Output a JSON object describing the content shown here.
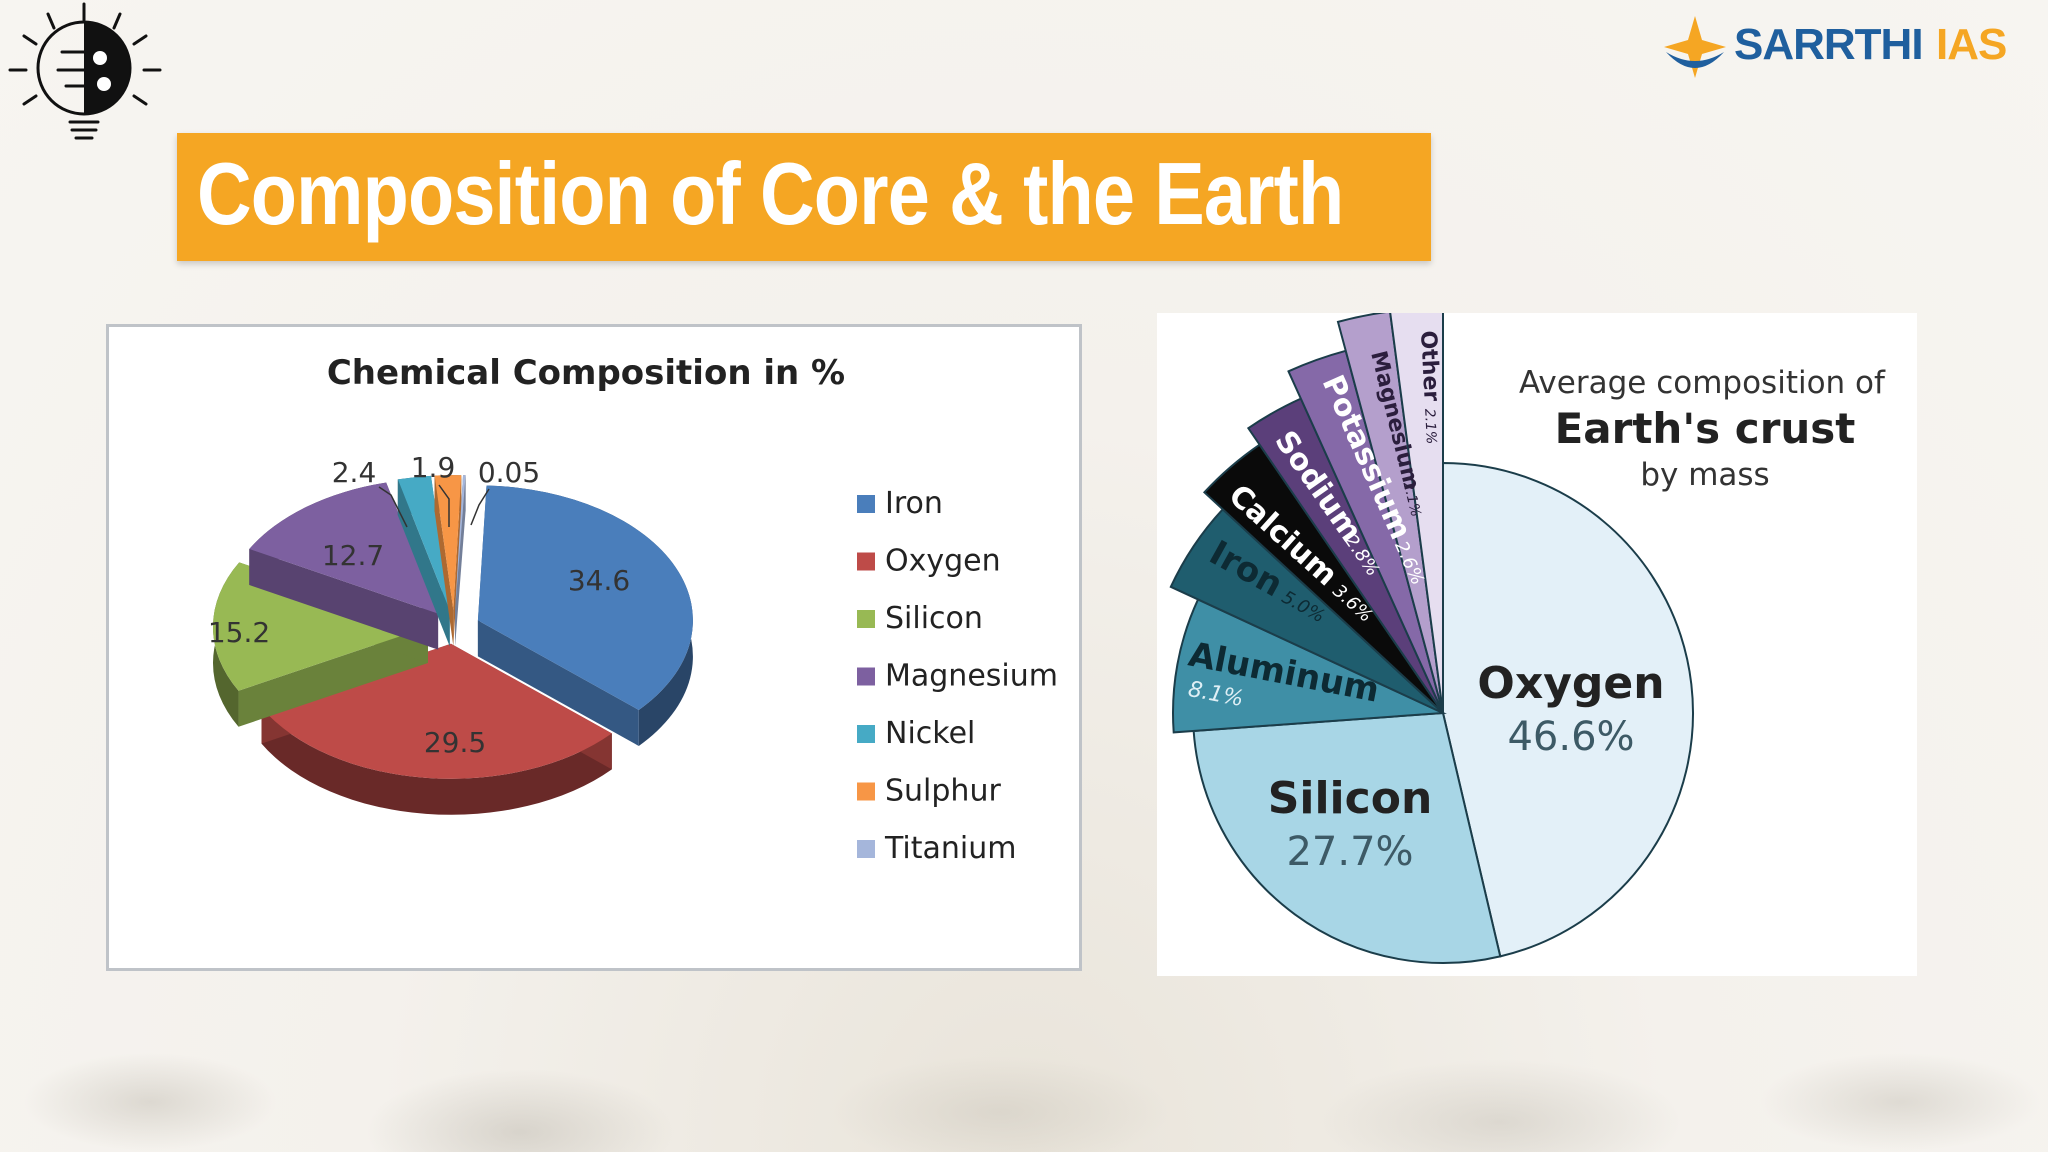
{
  "brand": {
    "name_part1": "SARRTHI",
    "name_part2": "IAS",
    "colors": {
      "blue": "#1f5f9e",
      "orange": "#f5a623"
    }
  },
  "header": {
    "title": "Composition of Core & the Earth",
    "banner_color": "#f5a623"
  },
  "icons": [
    "lightbulb-icon",
    "brand-logo-icon"
  ],
  "chart_data": [
    {
      "type": "pie",
      "title": "Chemical Composition in %",
      "legend_position": "right",
      "categories": [
        "Iron",
        "Oxygen",
        "Silicon",
        "Magnesium",
        "Nickel",
        "Sulphur",
        "Titanium"
      ],
      "values": [
        34.6,
        29.5,
        15.2,
        12.7,
        2.4,
        1.9,
        0.05
      ],
      "data_labels": [
        "34.6",
        "29.5",
        "15.2",
        "12.7",
        "2.4",
        "1.9",
        "0.05"
      ],
      "colors": [
        "#4a7ebb",
        "#be4b48",
        "#98b954",
        "#7d60a0",
        "#46aac5",
        "#f79646",
        "#a5b6db"
      ]
    },
    {
      "type": "pie",
      "title": "Average composition of",
      "title_emphasis": "Earth's crust",
      "subtitle": "by mass",
      "categories": [
        "Oxygen",
        "Silicon",
        "Aluminum",
        "Iron",
        "Calcium",
        "Sodium",
        "Potassium",
        "Magnesium",
        "Other"
      ],
      "values": [
        46.6,
        27.7,
        8.1,
        5.0,
        3.6,
        2.8,
        2.6,
        2.1,
        2.1
      ],
      "data_labels": [
        "46.6%",
        "27.7%",
        "8.1%",
        "5.0%",
        "3.6%",
        "2.8%",
        "2.6%",
        "2.1%",
        "2.1%"
      ],
      "colors": [
        "#e3f0f8",
        "#a8d6e6",
        "#3f8fa6",
        "#1f5d6e",
        "#0a0a0a",
        "#5b3f7a",
        "#8569a8",
        "#b49fcc",
        "#e6def0"
      ]
    }
  ]
}
